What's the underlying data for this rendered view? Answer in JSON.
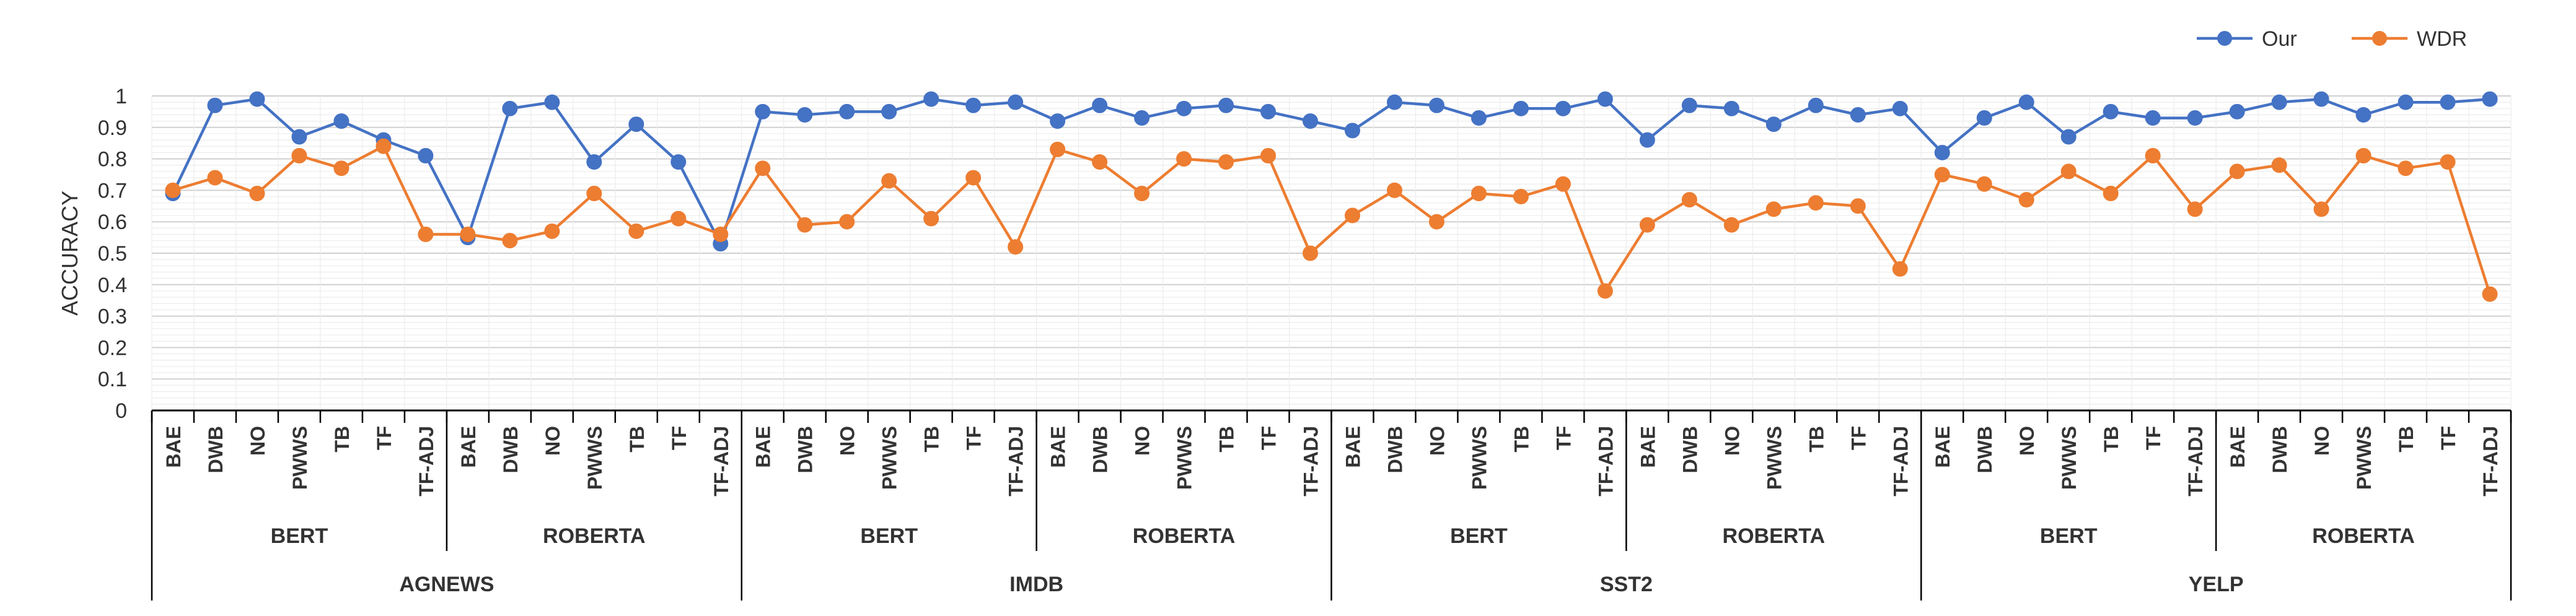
{
  "chart_data": {
    "type": "line",
    "ylabel": "ACCURACY",
    "xlabel": "",
    "ylim": [
      0,
      1
    ],
    "yticks": [
      "0",
      "0.1",
      "0.2",
      "0.3",
      "0.4",
      "0.5",
      "0.6",
      "0.7",
      "0.8",
      "0.9",
      "1"
    ],
    "grid": true,
    "legend_position": "top-right",
    "categories": [
      "BAE",
      "DWB",
      "NO",
      "PWWS",
      "TB",
      "TF",
      "TF-ADJ",
      "BAE",
      "DWB",
      "NO",
      "PWWS",
      "TB",
      "TF",
      "TF-ADJ",
      "BAE",
      "DWB",
      "NO",
      "PWWS",
      "TB",
      "TF",
      "TF-ADJ",
      "BAE",
      "DWB",
      "NO",
      "PWWS",
      "TB",
      "TF",
      "TF-ADJ",
      "BAE",
      "DWB",
      "NO",
      "PWWS",
      "TB",
      "TF",
      "TF-ADJ",
      "BAE",
      "DWB",
      "NO",
      "PWWS",
      "TB",
      "TF",
      "TF-ADJ",
      "BAE",
      "DWB",
      "NO",
      "PWWS",
      "TB",
      "TF",
      "TF-ADJ",
      "BAE",
      "DWB",
      "NO",
      "PWWS",
      "TB",
      "TF",
      "TF-ADJ"
    ],
    "models": [
      "BERT",
      "ROBERTA",
      "BERT",
      "ROBERTA",
      "BERT",
      "ROBERTA",
      "BERT",
      "ROBERTA"
    ],
    "datasets": [
      "AGNEWS",
      "IMDB",
      "SST2",
      "YELP"
    ],
    "series": [
      {
        "name": "Our",
        "color": "#4472C4",
        "values": [
          0.69,
          0.97,
          0.99,
          0.87,
          0.92,
          0.86,
          0.81,
          0.55,
          0.96,
          0.98,
          0.79,
          0.91,
          0.79,
          0.53,
          0.95,
          0.94,
          0.95,
          0.95,
          0.99,
          0.97,
          0.98,
          0.92,
          0.97,
          0.93,
          0.96,
          0.97,
          0.95,
          0.92,
          0.89,
          0.98,
          0.97,
          0.93,
          0.96,
          0.96,
          0.99,
          0.86,
          0.97,
          0.96,
          0.91,
          0.97,
          0.94,
          0.96,
          0.82,
          0.93,
          0.98,
          0.87,
          0.95,
          0.93,
          0.93,
          0.95,
          0.98,
          0.99,
          0.94,
          0.98,
          0.98,
          0.99
        ]
      },
      {
        "name": "WDR",
        "color": "#ED7D31",
        "values": [
          0.7,
          0.74,
          0.69,
          0.81,
          0.77,
          0.84,
          0.56,
          0.56,
          0.54,
          0.57,
          0.69,
          0.57,
          0.61,
          0.56,
          0.77,
          0.59,
          0.6,
          0.73,
          0.61,
          0.74,
          0.52,
          0.83,
          0.79,
          0.69,
          0.8,
          0.79,
          0.81,
          0.5,
          0.62,
          0.7,
          0.6,
          0.69,
          0.68,
          0.72,
          0.38,
          0.59,
          0.67,
          0.59,
          0.64,
          0.66,
          0.65,
          0.45,
          0.75,
          0.72,
          0.67,
          0.76,
          0.69,
          0.81,
          0.64,
          0.76,
          0.78,
          0.64,
          0.81,
          0.77,
          0.79,
          0.37
        ]
      }
    ]
  }
}
